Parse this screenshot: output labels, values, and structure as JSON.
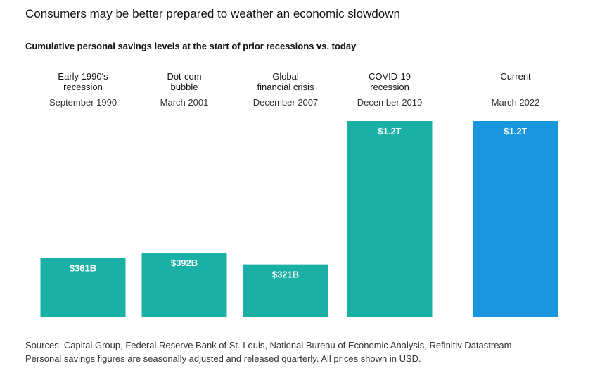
{
  "title": "Consumers may be better prepared to weather an economic slowdown",
  "subtitle": "Cumulative personal savings levels at the start of prior recessions vs. today",
  "sources": {
    "line1": "Sources: Capital Group, Federal Reserve Bank of St. Louis, National Bureau of Economic Analysis, Refinitiv Datastream.",
    "line2": "Personal savings figures are seasonally adjusted and released quarterly. All prices shown in USD."
  },
  "colors": {
    "teal": "#1ab0a6",
    "blue": "#1a96df",
    "axis": "#bbbbbb"
  },
  "chart_data": {
    "type": "bar",
    "unit": "USD billions",
    "ylim": [
      0,
      1200
    ],
    "grid": false,
    "categories": [
      {
        "label": [
          "Early 1990's",
          "recession"
        ],
        "date": "September 1990",
        "value": 361,
        "value_label": "$361B",
        "color": "#1ab0a6"
      },
      {
        "label": [
          "Dot-com",
          "bubble"
        ],
        "date": "March 2001",
        "value": 392,
        "value_label": "$392B",
        "color": "#1ab0a6"
      },
      {
        "label": [
          "Global",
          "financial crisis"
        ],
        "date": "December 2007",
        "value": 321,
        "value_label": "$321B",
        "color": "#1ab0a6"
      },
      {
        "label": [
          "COVID-19",
          "recession"
        ],
        "date": "December 2019",
        "value": 1200,
        "value_label": "$1.2T",
        "color": "#1ab0a6"
      },
      {
        "label": [
          "Current"
        ],
        "date": "March 2022",
        "value": 1200,
        "value_label": "$1.2T",
        "color": "#1a96df"
      }
    ]
  }
}
